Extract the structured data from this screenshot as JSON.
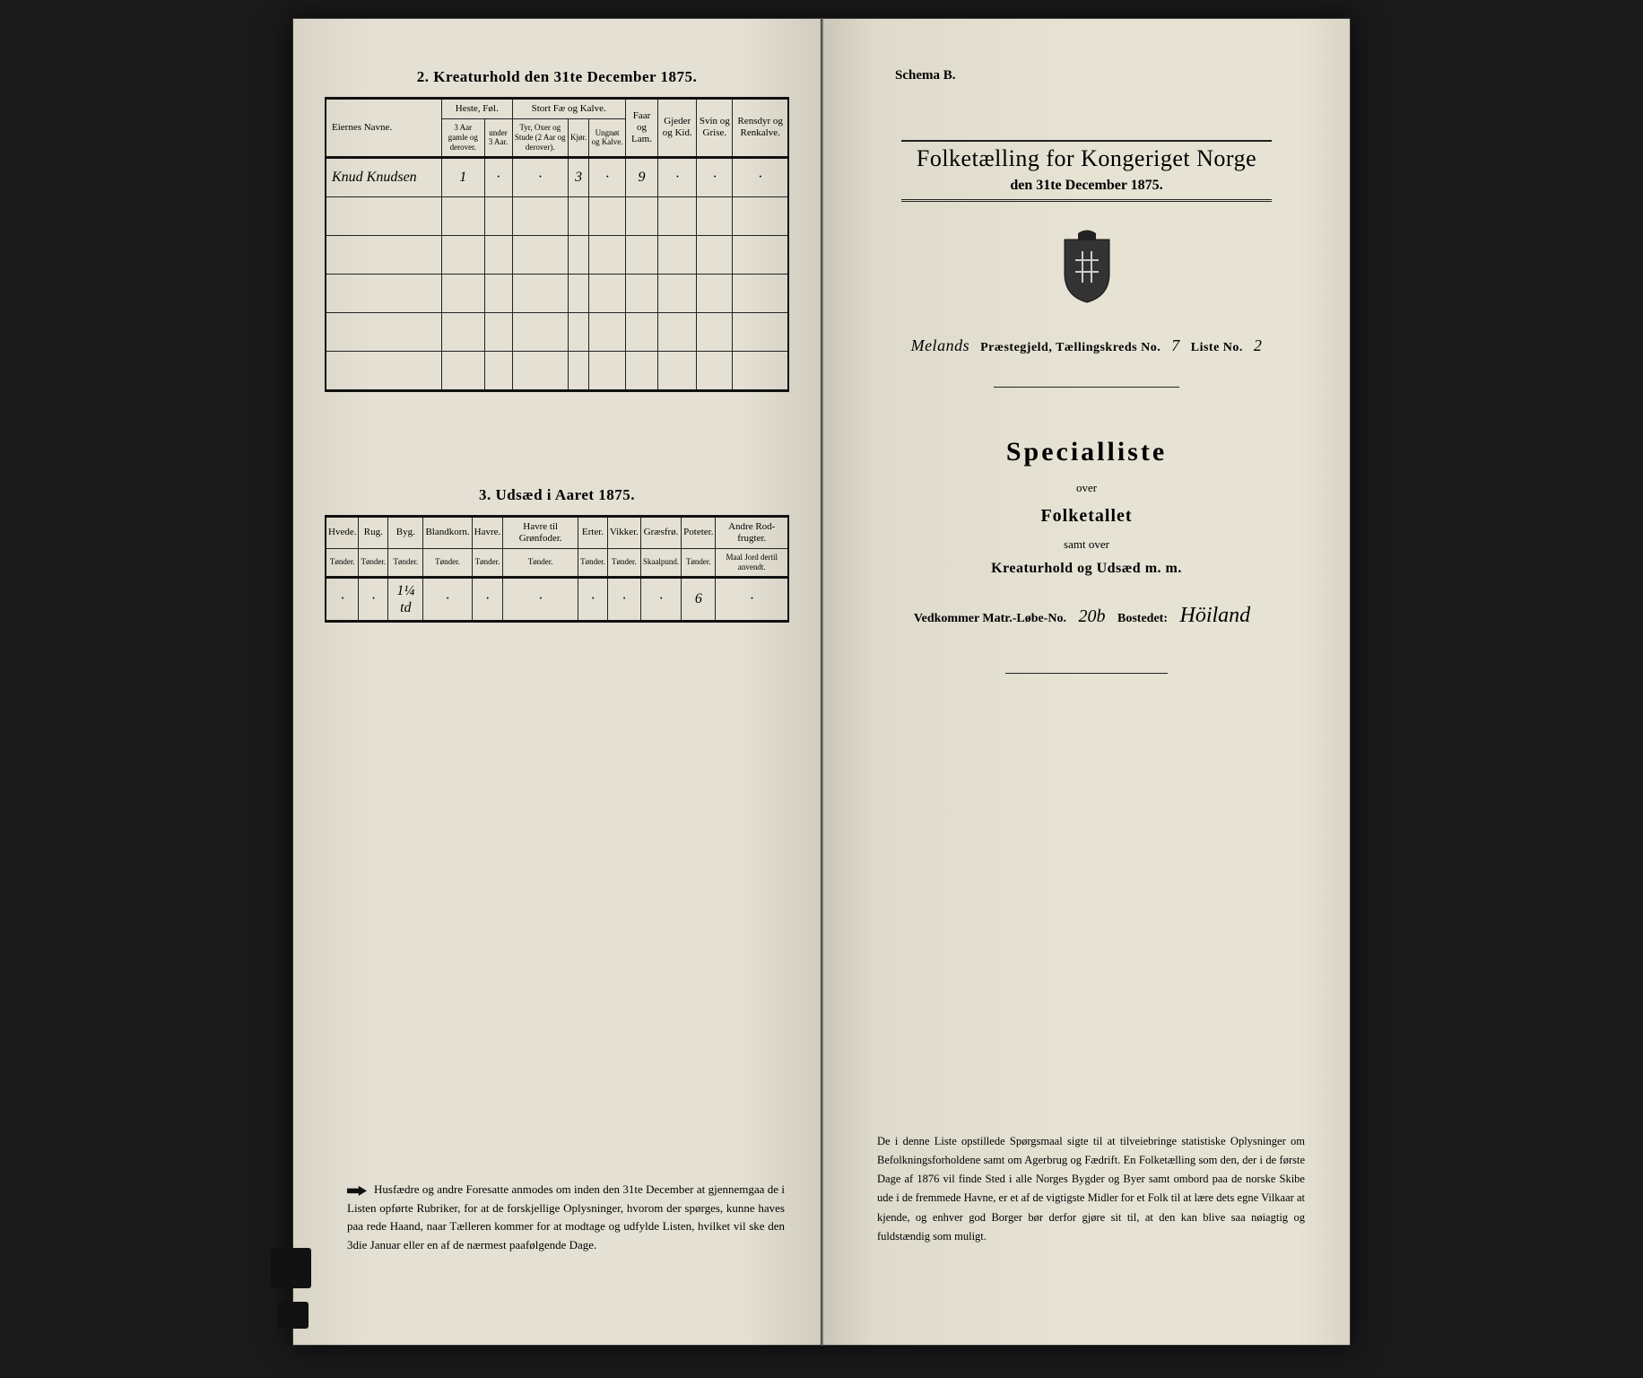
{
  "left": {
    "section2_title": "2.  Kreaturhold den 31te December 1875.",
    "table2": {
      "col_name": "Eiernes Navne.",
      "group_heste": "Heste, Føl.",
      "group_stort": "Stort Fæ og Kalve.",
      "col_faar": "Faar og Lam.",
      "col_gjeder": "Gjeder og Kid.",
      "col_svin": "Svin og Grise.",
      "col_rensdyr": "Rensdyr og Renkalve.",
      "sub_heste1": "3 Aar gamle og derover.",
      "sub_heste2": "under 3 Aar.",
      "sub_stort1": "Tyr, Oxer og Stude (2 Aar og derover).",
      "sub_stort2": "Kjør.",
      "sub_stort3": "Ungnøt og Kalve.",
      "row": {
        "name": "Knud Knudsen",
        "heste1": "1",
        "heste2": "·",
        "stort1": "·",
        "stort2": "3",
        "stort3": "·",
        "faar": "9",
        "gjeder": "·",
        "svin": "·",
        "rensdyr": "·"
      }
    },
    "section3_title": "3.  Udsæd i Aaret 1875.",
    "table3": {
      "columns": [
        {
          "h": "Hvede.",
          "s": "Tønder."
        },
        {
          "h": "Rug.",
          "s": "Tønder."
        },
        {
          "h": "Byg.",
          "s": "Tønder."
        },
        {
          "h": "Blandkorn.",
          "s": "Tønder."
        },
        {
          "h": "Havre.",
          "s": "Tønder."
        },
        {
          "h": "Havre til Grønfoder.",
          "s": "Tønder."
        },
        {
          "h": "Erter.",
          "s": "Tønder."
        },
        {
          "h": "Vikker.",
          "s": "Tønder."
        },
        {
          "h": "Græsfrø.",
          "s": "Skaalpund."
        },
        {
          "h": "Poteter.",
          "s": "Tønder."
        },
        {
          "h": "Andre Rod-frugter.",
          "s": "Maal Jord dertil anvendt."
        }
      ],
      "row": [
        "·",
        "·",
        "1¼ td",
        "·",
        "·",
        "·",
        "·",
        "·",
        "·",
        "6",
        "·"
      ]
    },
    "footer": "Husfædre og andre Foresatte anmodes om inden den 31te December at gjennemgaa de i Listen opførte Rubriker, for at de forskjellige Oplysninger, hvorom der spørges, kunne haves paa rede Haand, naar Tælleren kommer for at modtage og udfylde Listen, hvilket vil ske den 3die Januar eller en af de nærmest paafølgende Dage."
  },
  "right": {
    "schema": "Schema B.",
    "title": "Folketælling for Kongeriget Norge",
    "date": "den 31te December 1875.",
    "parish_prefix": "Melands",
    "parish_label1": " Præstegjeld,  Tællingskreds No. ",
    "kreds_no": "7",
    "liste_label": "   Liste No. ",
    "liste_no": "2",
    "specialliste": "Specialliste",
    "over": "over",
    "folketallet": "Folketallet",
    "samt": "samt over",
    "kreatur": "Kreaturhold og Udsæd m. m.",
    "matr_label1": "Vedkommer  Matr.-Løbe-No. ",
    "matr_no": "20b",
    "bosted_label": "   Bostedet: ",
    "bosted": "Höiland",
    "footer": "De i denne Liste opstillede Spørgsmaal sigte til at tilveiebringe statistiske Oplysninger om Befolkningsforholdene samt om Agerbrug og Fædrift.  En Folketælling som den, der i de første Dage af 1876 vil finde Sted i alle Norges Bygder og Byer samt ombord paa de norske Skibe ude i de fremmede Havne, er et af de vigtigste Midler for et Folk til at lære dets egne Vilkaar at kjende, og enhver god Borger bør derfor gjøre sit til, at den kan blive saa nøiagtig og fuldstændig som muligt."
  },
  "colors": {
    "paper": "#e4e0d4",
    "ink": "#1a1a1a",
    "border": "#222222"
  }
}
